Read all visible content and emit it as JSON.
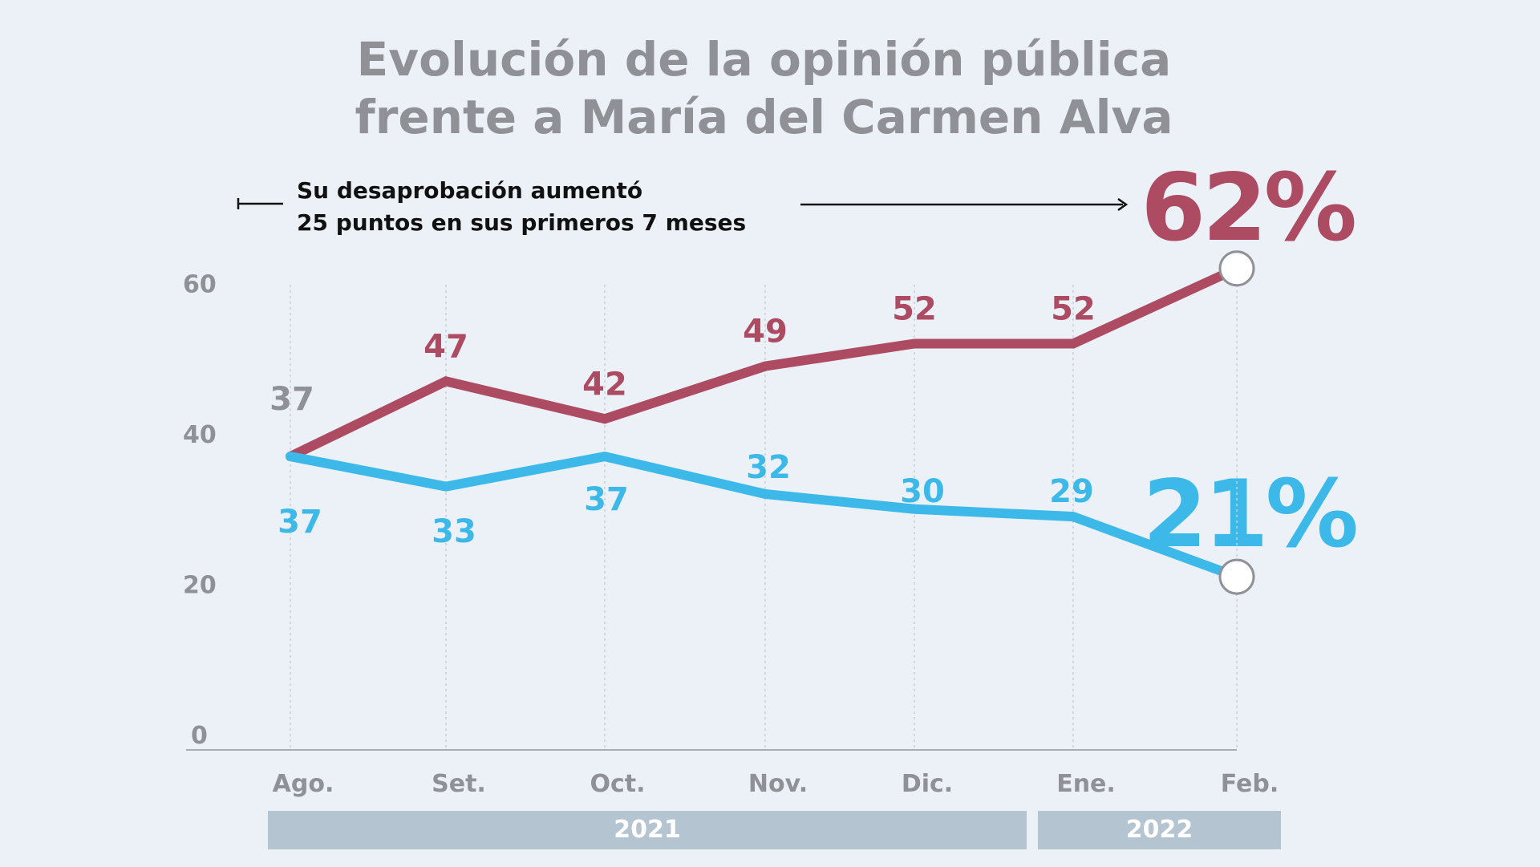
{
  "title_line1": "Evolución de la opinión pública",
  "title_line2": "frente a María del Carmen Alva",
  "annotation_line1": "Su desaprobación aumentó",
  "annotation_line2": "25 puntos en sus primeros 7 meses",
  "big_disapproval": "62%",
  "big_approval": "21%",
  "years": [
    "2021",
    "2022"
  ],
  "colors": {
    "disapproval": "#ad4b63",
    "approval": "#3cb9e8",
    "axis_text": "#8f9197",
    "year_bar": "#b4c4d0"
  },
  "chart_data": {
    "type": "line",
    "title": "Evolución de la opinión pública frente a María del Carmen Alva",
    "categories": [
      "Ago.",
      "Set.",
      "Oct.",
      "Nov.",
      "Dic.",
      "Ene.",
      "Feb."
    ],
    "ylim": [
      0,
      60
    ],
    "yticks": [
      0,
      20,
      40,
      60
    ],
    "grid": "vertical dotted",
    "series": [
      {
        "key": "disapproval",
        "values": [
          37,
          47,
          42,
          49,
          52,
          52,
          62
        ],
        "labels": [
          "37",
          "47",
          "42",
          "49",
          "52",
          "52",
          ""
        ]
      },
      {
        "key": "approval",
        "values": [
          37,
          33,
          37,
          32,
          30,
          29,
          21
        ],
        "labels": [
          "37",
          "33",
          "37",
          "32",
          "30",
          "29",
          ""
        ]
      }
    ]
  }
}
